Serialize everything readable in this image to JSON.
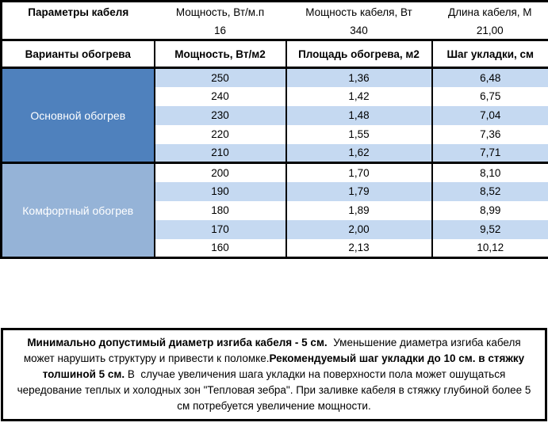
{
  "colors": {
    "accent_dark_blue": "#4f81bd",
    "accent_light_blue": "#95b3d7",
    "row_stripe_blue": "#c5d9f1",
    "border_black": "#000000"
  },
  "cable_params": {
    "title": "Параметры кабеля",
    "fields": [
      {
        "label": "Мощность, Вт/м.п",
        "value": "16"
      },
      {
        "label": "Мощность кабеля, Вт",
        "value": "340"
      },
      {
        "label": "Длина кабеля, М",
        "value": "21,00"
      }
    ]
  },
  "heating_table": {
    "columns": [
      "Варианты обогрева",
      "Мощность, Вт/м2",
      "Площадь обогрева, м2",
      "Шаг укладки, см"
    ],
    "sections": [
      {
        "name": "Основной обогрев",
        "rows": [
          [
            "250",
            "1,36",
            "6,48"
          ],
          [
            "240",
            "1,42",
            "6,75"
          ],
          [
            "230",
            "1,48",
            "7,04"
          ],
          [
            "220",
            "1,55",
            "7,36"
          ],
          [
            "210",
            "1,62",
            "7,71"
          ]
        ]
      },
      {
        "name": "Комфортный обогрев",
        "rows": [
          [
            "200",
            "1,70",
            "8,10"
          ],
          [
            "190",
            "1,79",
            "8,52"
          ],
          [
            "180",
            "1,89",
            "8,99"
          ],
          [
            "170",
            "2,00",
            "9,52"
          ],
          [
            "160",
            "2,13",
            "10,12"
          ]
        ]
      }
    ]
  },
  "note": {
    "segments": [
      {
        "bold": true,
        "text": "Минимально допустимый диаметр изгиба кабеля - 5 см."
      },
      {
        "bold": false,
        "text": "  Уменьшение диаметра изгиба кабеля может нарушить структуру и привести к поломке."
      },
      {
        "bold": true,
        "text": "Рекомендуемый шаг укладки до 10 см. в стяжку толшиной 5 см."
      },
      {
        "bold": false,
        "text": " В  случае увеличения шага укладки на поверхности пола может ошущаться чередование теплых и холодных зон \"Тепловая зебра\". При заливке кабеля в стяжку глубиной более 5 см потребуется увеличение мощности."
      }
    ]
  }
}
